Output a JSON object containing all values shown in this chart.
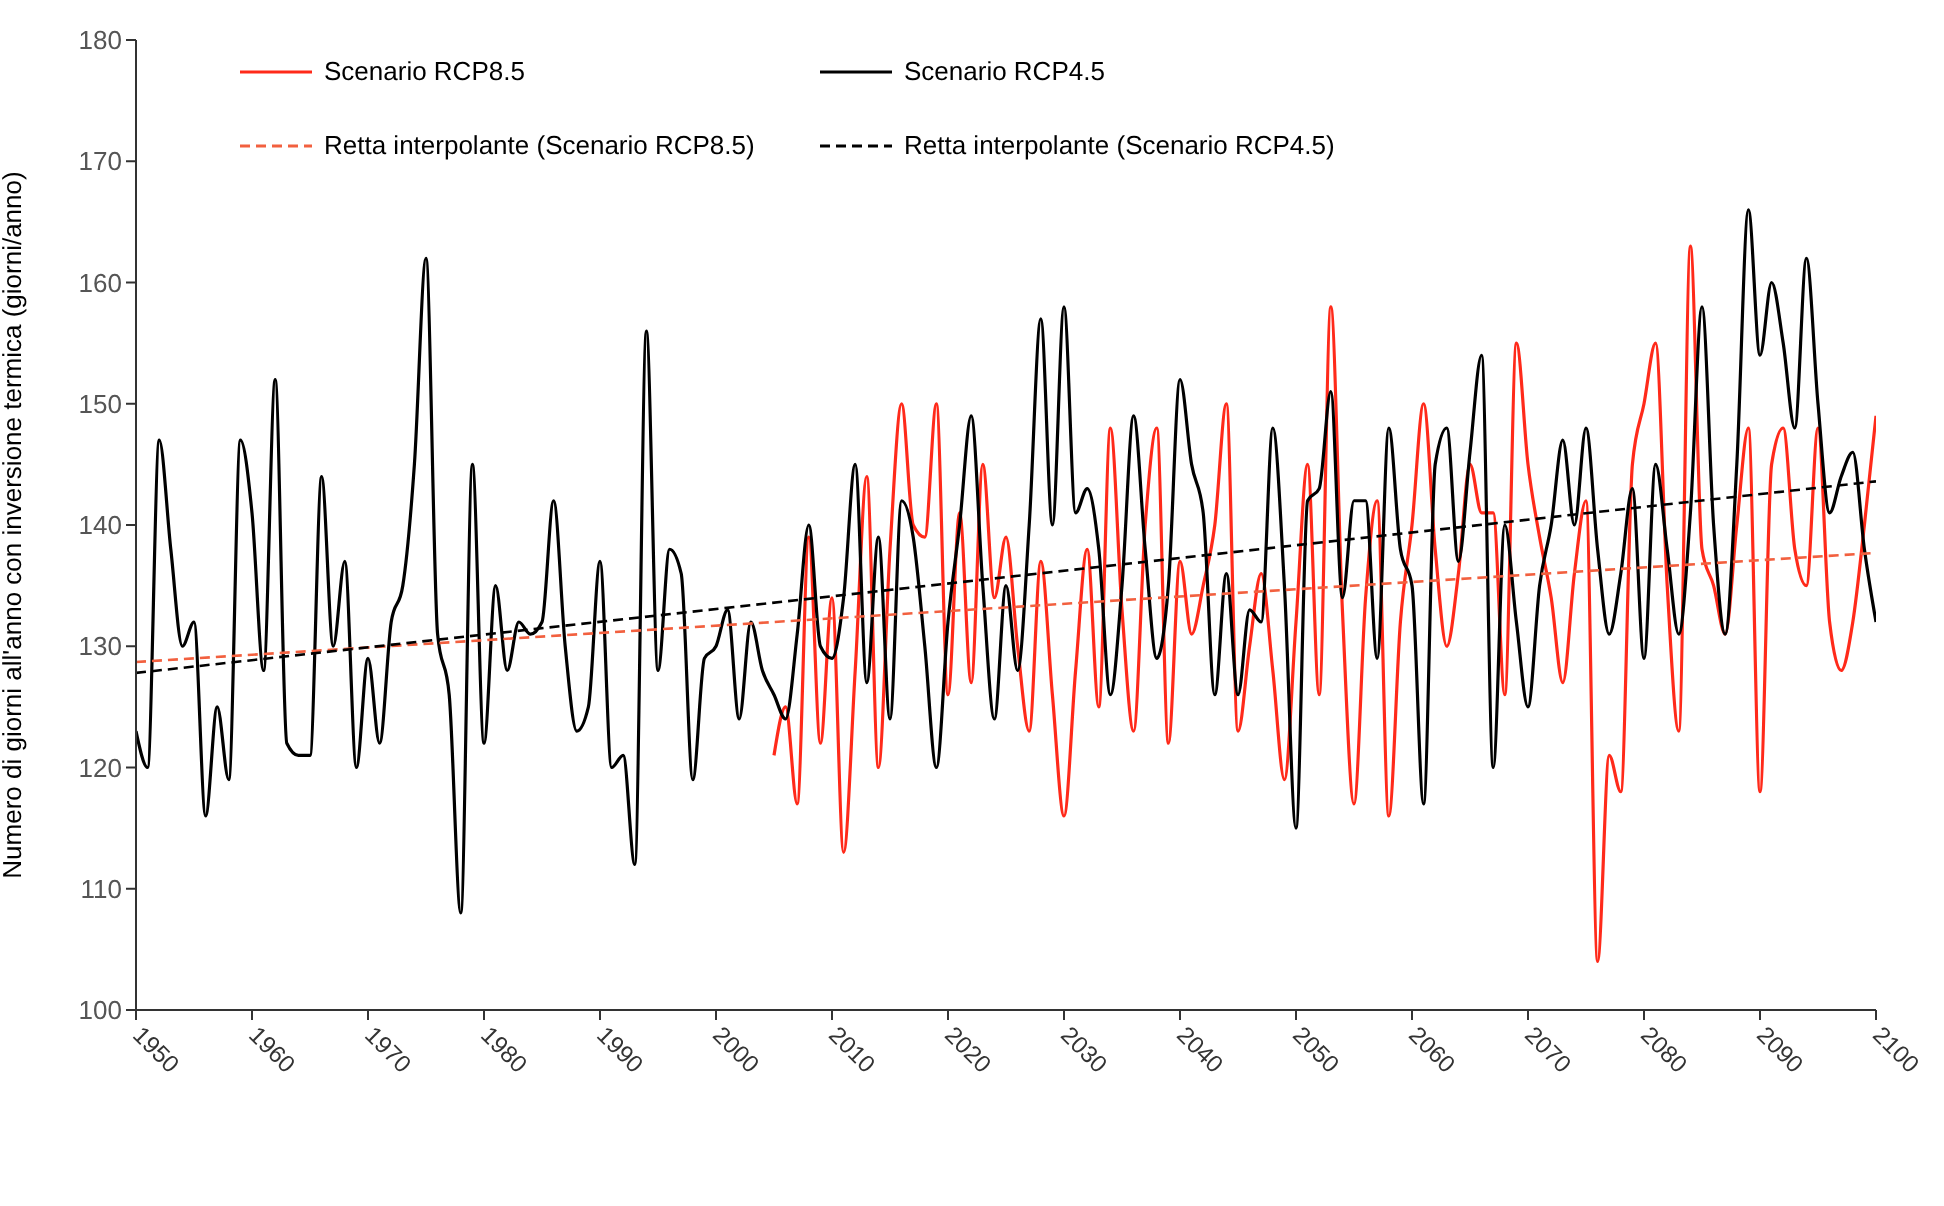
{
  "chart_data": {
    "type": "line",
    "ylabel": "Numero di giorni all'anno con inversione termica (giorni/anno)",
    "xlim": [
      1950,
      2100
    ],
    "xticks": [
      1950,
      1960,
      1970,
      1980,
      1990,
      2000,
      2010,
      2020,
      2030,
      2040,
      2050,
      2060,
      2070,
      2080,
      2090,
      2100
    ],
    "ylim": [
      100,
      180
    ],
    "yticks": [
      100,
      110,
      120,
      130,
      140,
      150,
      160,
      170,
      180
    ],
    "legend": "top left",
    "marker": "none",
    "series": [
      {
        "name": "Scenario RCP8.5",
        "color": "#ff2a1a",
        "line_style": "solid",
        "x": [
          2005,
          2006,
          2007,
          2008,
          2009,
          2010,
          2011,
          2012,
          2013,
          2014,
          2015,
          2016,
          2017,
          2018,
          2019,
          2020,
          2021,
          2022,
          2023,
          2024,
          2025,
          2026,
          2027,
          2028,
          2029,
          2030,
          2031,
          2032,
          2033,
          2034,
          2035,
          2036,
          2037,
          2038,
          2039,
          2040,
          2041,
          2042,
          2043,
          2044,
          2045,
          2046,
          2047,
          2048,
          2049,
          2050,
          2051,
          2052,
          2053,
          2054,
          2055,
          2056,
          2057,
          2058,
          2059,
          2060,
          2061,
          2062,
          2063,
          2064,
          2065,
          2066,
          2067,
          2068,
          2069,
          2070,
          2071,
          2072,
          2073,
          2074,
          2075,
          2076,
          2077,
          2078,
          2079,
          2080,
          2081,
          2082,
          2083,
          2084,
          2085,
          2086,
          2087,
          2088,
          2089,
          2090,
          2091,
          2092,
          2093,
          2094,
          2095,
          2096,
          2097,
          2098,
          2099,
          2100
        ],
        "values": [
          121,
          125,
          117,
          139,
          122,
          134,
          113,
          128,
          144,
          120,
          138,
          150,
          140,
          139,
          150,
          126,
          141,
          127,
          145,
          134,
          139,
          130,
          123,
          137,
          126,
          116,
          128,
          138,
          125,
          148,
          133,
          123,
          140,
          148,
          122,
          137,
          131,
          135,
          140,
          150,
          123,
          130,
          136,
          128,
          119,
          132,
          145,
          126,
          158,
          133,
          117,
          134,
          142,
          116,
          132,
          140,
          150,
          138,
          130,
          136,
          145,
          141,
          141,
          126,
          155,
          145,
          139,
          134,
          127,
          136,
          142,
          104,
          121,
          118,
          145,
          150,
          155,
          135,
          123,
          163,
          138,
          135,
          131,
          140,
          148,
          118,
          145,
          148,
          138,
          135,
          148,
          132,
          128,
          132,
          140,
          149
        ]
      },
      {
        "name": "Scenario RCP4.5",
        "color": "#000000",
        "line_style": "solid",
        "x": [
          1950,
          1951,
          1952,
          1953,
          1954,
          1955,
          1956,
          1957,
          1958,
          1959,
          1960,
          1961,
          1962,
          1963,
          1964,
          1965,
          1966,
          1967,
          1968,
          1969,
          1970,
          1971,
          1972,
          1973,
          1974,
          1975,
          1976,
          1977,
          1978,
          1979,
          1980,
          1981,
          1982,
          1983,
          1984,
          1985,
          1986,
          1987,
          1988,
          1989,
          1990,
          1991,
          1992,
          1993,
          1994,
          1995,
          1996,
          1997,
          1998,
          1999,
          2000,
          2001,
          2002,
          2003,
          2004,
          2005,
          2006,
          2007,
          2008,
          2009,
          2010,
          2011,
          2012,
          2013,
          2014,
          2015,
          2016,
          2017,
          2018,
          2019,
          2020,
          2021,
          2022,
          2023,
          2024,
          2025,
          2026,
          2027,
          2028,
          2029,
          2030,
          2031,
          2032,
          2033,
          2034,
          2035,
          2036,
          2037,
          2038,
          2039,
          2040,
          2041,
          2042,
          2043,
          2044,
          2045,
          2046,
          2047,
          2048,
          2049,
          2050,
          2051,
          2052,
          2053,
          2054,
          2055,
          2056,
          2057,
          2058,
          2059,
          2060,
          2061,
          2062,
          2063,
          2064,
          2065,
          2066,
          2067,
          2068,
          2069,
          2070,
          2071,
          2072,
          2073,
          2074,
          2075,
          2076,
          2077,
          2078,
          2079,
          2080,
          2081,
          2082,
          2083,
          2084,
          2085,
          2086,
          2087,
          2088,
          2089,
          2090,
          2091,
          2092,
          2093,
          2094,
          2095,
          2096,
          2097,
          2098,
          2099,
          2100
        ],
        "values": [
          123,
          120,
          147,
          138,
          130,
          132,
          116,
          125,
          119,
          147,
          141,
          128,
          152,
          122,
          121,
          121,
          144,
          130,
          137,
          120,
          129,
          122,
          132,
          135,
          145,
          162,
          131,
          126,
          108,
          145,
          122,
          135,
          128,
          132,
          131,
          132,
          142,
          130,
          123,
          125,
          137,
          120,
          121,
          112,
          156,
          128,
          138,
          136,
          119,
          129,
          130,
          133,
          124,
          132,
          128,
          126,
          124,
          131,
          140,
          130,
          129,
          134,
          145,
          127,
          139,
          124,
          142,
          139,
          130,
          120,
          132,
          140,
          149,
          135,
          124,
          135,
          128,
          140,
          157,
          140,
          158,
          141,
          143,
          138,
          126,
          135,
          149,
          138,
          129,
          135,
          152,
          145,
          141,
          126,
          136,
          126,
          133,
          132,
          148,
          135,
          115,
          142,
          143,
          151,
          134,
          142,
          142,
          129,
          148,
          138,
          135,
          117,
          145,
          148,
          137,
          146,
          154,
          120,
          140,
          132,
          125,
          135,
          140,
          147,
          140,
          148,
          138,
          131,
          136,
          143,
          129,
          145,
          138,
          131,
          141,
          158,
          140,
          131,
          145,
          166,
          154,
          160,
          155,
          148,
          162,
          150,
          141,
          144,
          146,
          138,
          132
        ]
      },
      {
        "name": "Retta interpolante (Scenario RCP8.5)",
        "color": "#f2603f",
        "line_style": "dashed",
        "x": [
          1950,
          2100
        ],
        "values": [
          128.7,
          137.7
        ]
      },
      {
        "name": "Retta interpolante (Scenario RCP4.5)",
        "color": "#000000",
        "line_style": "dashed",
        "x": [
          1950,
          2100
        ],
        "values": [
          127.8,
          143.6
        ]
      }
    ]
  }
}
